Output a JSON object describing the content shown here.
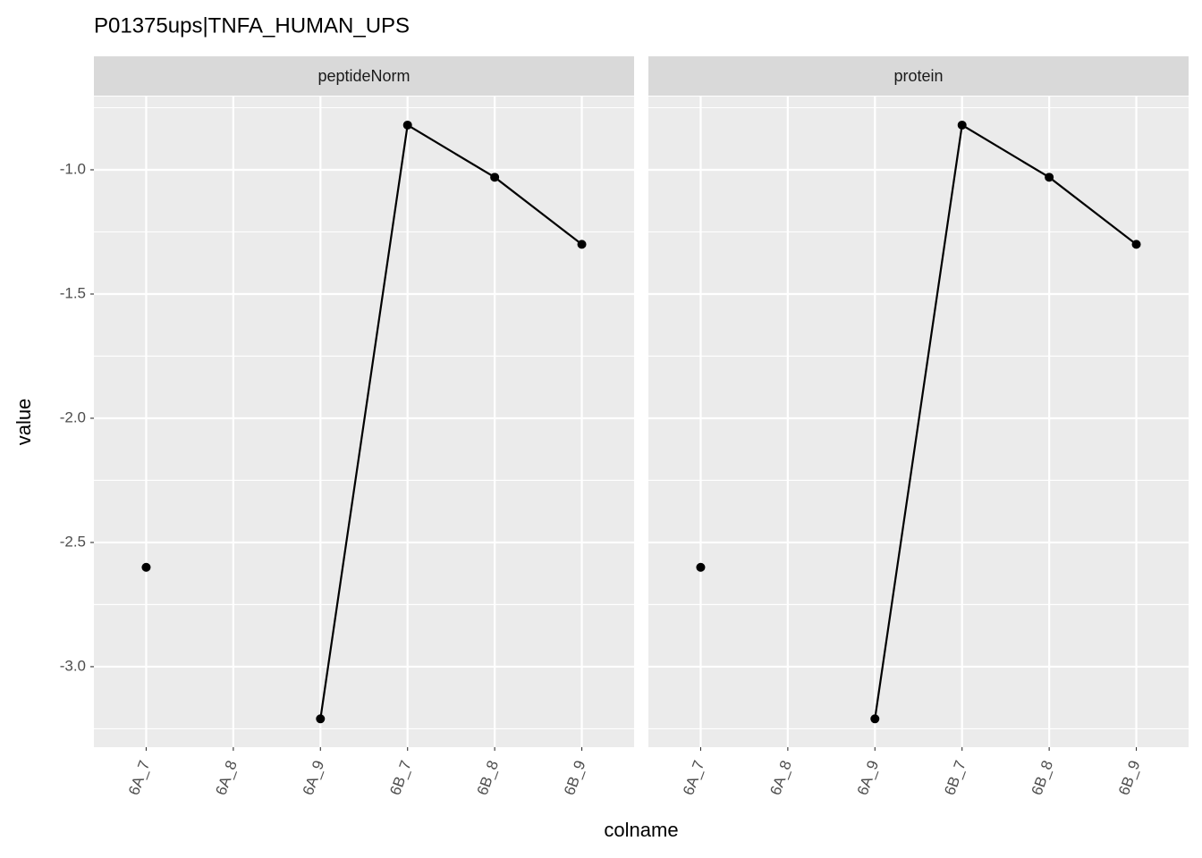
{
  "title": "P01375ups|TNFA_HUMAN_UPS",
  "x_label": "colname",
  "y_label": "value",
  "chart_data": [
    {
      "type": "line",
      "facet": "peptideNorm",
      "categories": [
        "6A_7",
        "6A_8",
        "6A_9",
        "6B_7",
        "6B_8",
        "6B_9"
      ],
      "series": [
        {
          "color": "#000000",
          "values": [
            -2.6,
            null,
            -3.21,
            -0.82,
            -1.03,
            -1.3
          ]
        }
      ],
      "ylim": [
        -3.324,
        -0.705
      ],
      "yticks": [
        {
          "value": -1,
          "label": "-1.0"
        },
        -1.5,
        {
          "value": -2,
          "label": "-2.0"
        },
        -2.5,
        {
          "value": -3,
          "label": "-3.0"
        }
      ],
      "grid": true,
      "minor_grid": true
    },
    {
      "type": "line",
      "facet": "protein",
      "categories": [
        "6A_7",
        "6A_8",
        "6A_9",
        "6B_7",
        "6B_8",
        "6B_9"
      ],
      "series": [
        {
          "color": "#000000",
          "values": [
            -2.6,
            null,
            -3.21,
            -0.82,
            -1.03,
            -1.3
          ]
        }
      ],
      "ylim": [
        -3.324,
        -0.705
      ],
      "yticks": [
        {
          "value": -1,
          "label": "-1.0"
        },
        -1.5,
        {
          "value": -2,
          "label": "-2.0"
        },
        -2.5,
        {
          "value": -3,
          "label": "-3.0"
        }
      ],
      "grid": true,
      "minor_grid": true
    }
  ]
}
